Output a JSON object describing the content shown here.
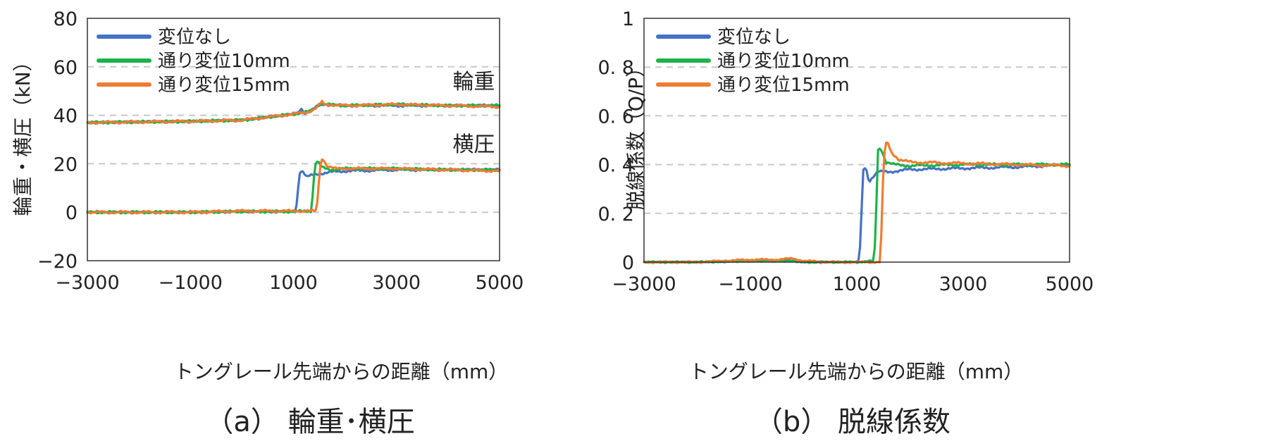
{
  "figure": {
    "colors": {
      "none": "#4472C4",
      "d10": "#1DB24A",
      "d15": "#ED7D31",
      "grid": "#C8C8C8"
    }
  },
  "chart_data": [
    {
      "type": "line",
      "caption": "（a）  輪重･横圧",
      "xlabel": "トングレール先端からの距離（mm）",
      "ylabel": "輪重・横圧（kN）",
      "xlim": [
        -3000,
        5000
      ],
      "ylim": [
        -20,
        80
      ],
      "xticks": [
        -3000,
        -1000,
        1000,
        3000,
        5000
      ],
      "yticks": [
        -20,
        0,
        20,
        40,
        60,
        80
      ],
      "grid": "horizontal dashed",
      "legend_position": "top-left",
      "annotations": [
        {
          "text": "輪重",
          "x": 4500,
          "y": 51
        },
        {
          "text": "横圧",
          "x": 4500,
          "y": 25
        }
      ],
      "series": [
        {
          "name": "変位なし",
          "key": "none",
          "points": [
            [
              -3000,
              37
            ],
            [
              -1000,
              37.5
            ],
            [
              0,
              38
            ],
            [
              600,
              39.5
            ],
            [
              1000,
              40.5
            ],
            [
              1100,
              41
            ],
            [
              1150,
              43
            ],
            [
              1200,
              41
            ],
            [
              1300,
              41.5
            ],
            [
              1450,
              43.5
            ],
            [
              1600,
              44.5
            ],
            [
              2000,
              44
            ],
            [
              3000,
              44
            ],
            [
              4000,
              44
            ],
            [
              5000,
              44
            ]
          ]
        },
        {
          "name": "通り変位10mm",
          "key": "d10",
          "points": [
            [
              -3000,
              37
            ],
            [
              -1000,
              37.5
            ],
            [
              0,
              38
            ],
            [
              600,
              39.5
            ],
            [
              1000,
              40.5
            ],
            [
              1300,
              41.5
            ],
            [
              1400,
              42.5
            ],
            [
              1500,
              45
            ],
            [
              1600,
              44.5
            ],
            [
              2000,
              44
            ],
            [
              3000,
              44.5
            ],
            [
              4000,
              44
            ],
            [
              5000,
              44
            ]
          ]
        },
        {
          "name": "通り変位15mm",
          "key": "d15",
          "points": [
            [
              -3000,
              37
            ],
            [
              -1000,
              37.5
            ],
            [
              0,
              38
            ],
            [
              600,
              39.5
            ],
            [
              1000,
              40.5
            ],
            [
              1300,
              41.5
            ],
            [
              1450,
              43
            ],
            [
              1550,
              45.5
            ],
            [
              1600,
              44.5
            ],
            [
              2000,
              44
            ],
            [
              3000,
              44.5
            ],
            [
              4000,
              44
            ],
            [
              5000,
              43.5
            ]
          ]
        },
        {
          "name": "変位なし",
          "key": "none",
          "legend": false,
          "points": [
            [
              -3000,
              0
            ],
            [
              -1000,
              0
            ],
            [
              0,
              0.3
            ],
            [
              1000,
              0.3
            ],
            [
              1050,
              0.5
            ],
            [
              1080,
              8
            ],
            [
              1120,
              16.5
            ],
            [
              1180,
              17
            ],
            [
              1250,
              14.5
            ],
            [
              1400,
              15.5
            ],
            [
              1550,
              16
            ],
            [
              1700,
              16.5
            ],
            [
              2000,
              17
            ],
            [
              3000,
              17.5
            ],
            [
              4000,
              17.5
            ],
            [
              5000,
              17.5
            ]
          ]
        },
        {
          "name": "通り変位10mm",
          "key": "d10",
          "legend": false,
          "points": [
            [
              -3000,
              0
            ],
            [
              -1000,
              0
            ],
            [
              0,
              0.3
            ],
            [
              1000,
              0.3
            ],
            [
              1350,
              0.5
            ],
            [
              1380,
              10
            ],
            [
              1420,
              20
            ],
            [
              1470,
              21
            ],
            [
              1550,
              18.5
            ],
            [
              1700,
              17.5
            ],
            [
              2000,
              18
            ],
            [
              3000,
              18
            ],
            [
              4000,
              17.5
            ],
            [
              5000,
              17.5
            ]
          ]
        },
        {
          "name": "通り変位15mm",
          "key": "d15",
          "legend": false,
          "points": [
            [
              -3000,
              0
            ],
            [
              -1000,
              0
            ],
            [
              0,
              0.5
            ],
            [
              1000,
              0.5
            ],
            [
              1450,
              0.5
            ],
            [
              1490,
              12
            ],
            [
              1530,
              21
            ],
            [
              1570,
              22.5
            ],
            [
              1650,
              19
            ],
            [
              1800,
              18
            ],
            [
              2000,
              18
            ],
            [
              3000,
              18
            ],
            [
              4000,
              17.5
            ],
            [
              5000,
              17
            ]
          ]
        }
      ]
    },
    {
      "type": "line",
      "caption": "（b）  脱線係数",
      "xlabel": "トングレール先端からの距離（mm）",
      "ylabel": "脱線係数（Q/P）",
      "xlim": [
        -3000,
        5000
      ],
      "ylim": [
        0,
        1
      ],
      "xticks": [
        -3000,
        -1000,
        1000,
        3000,
        5000
      ],
      "xtick_labels": [
        "−3000",
        "−1000",
        "1000",
        "3000",
        "5000"
      ],
      "yticks": [
        0,
        0.2,
        0.4,
        0.6,
        0.8,
        1
      ],
      "ytick_labels": [
        "0",
        "0. 2",
        "0. 4",
        "0. 6",
        "0. 8",
        "1"
      ],
      "grid": "horizontal dashed",
      "legend_position": "top-left",
      "series": [
        {
          "name": "変位なし",
          "key": "none",
          "points": [
            [
              -3000,
              0
            ],
            [
              -2000,
              0
            ],
            [
              -1000,
              0.005
            ],
            [
              -200,
              0.005
            ],
            [
              0,
              0
            ],
            [
              1000,
              0
            ],
            [
              1050,
              0.005
            ],
            [
              1080,
              0.15
            ],
            [
              1120,
              0.38
            ],
            [
              1170,
              0.39
            ],
            [
              1230,
              0.33
            ],
            [
              1300,
              0.35
            ],
            [
              1400,
              0.37
            ],
            [
              1600,
              0.37
            ],
            [
              2000,
              0.38
            ],
            [
              3000,
              0.385
            ],
            [
              4000,
              0.39
            ],
            [
              5000,
              0.4
            ]
          ]
        },
        {
          "name": "通り変位10mm",
          "key": "d10",
          "points": [
            [
              -3000,
              0
            ],
            [
              -2000,
              0
            ],
            [
              -1000,
              0.005
            ],
            [
              -200,
              0.005
            ],
            [
              0,
              0
            ],
            [
              1000,
              0
            ],
            [
              1330,
              0.005
            ],
            [
              1370,
              0.25
            ],
            [
              1400,
              0.46
            ],
            [
              1450,
              0.47
            ],
            [
              1550,
              0.41
            ],
            [
              1700,
              0.4
            ],
            [
              2000,
              0.395
            ],
            [
              3000,
              0.4
            ],
            [
              4000,
              0.4
            ],
            [
              5000,
              0.4
            ]
          ]
        },
        {
          "name": "通り変位15mm",
          "key": "d15",
          "points": [
            [
              -3000,
              0
            ],
            [
              -2000,
              0
            ],
            [
              -1000,
              0.01
            ],
            [
              -500,
              0.01
            ],
            [
              -200,
              0.015
            ],
            [
              0,
              0.005
            ],
            [
              500,
              0
            ],
            [
              1000,
              0
            ],
            [
              1450,
              0
            ],
            [
              1480,
              0.28
            ],
            [
              1530,
              0.48
            ],
            [
              1580,
              0.49
            ],
            [
              1650,
              0.45
            ],
            [
              1800,
              0.42
            ],
            [
              2000,
              0.41
            ],
            [
              3000,
              0.405
            ],
            [
              4000,
              0.4
            ],
            [
              5000,
              0.395
            ]
          ]
        }
      ]
    }
  ]
}
